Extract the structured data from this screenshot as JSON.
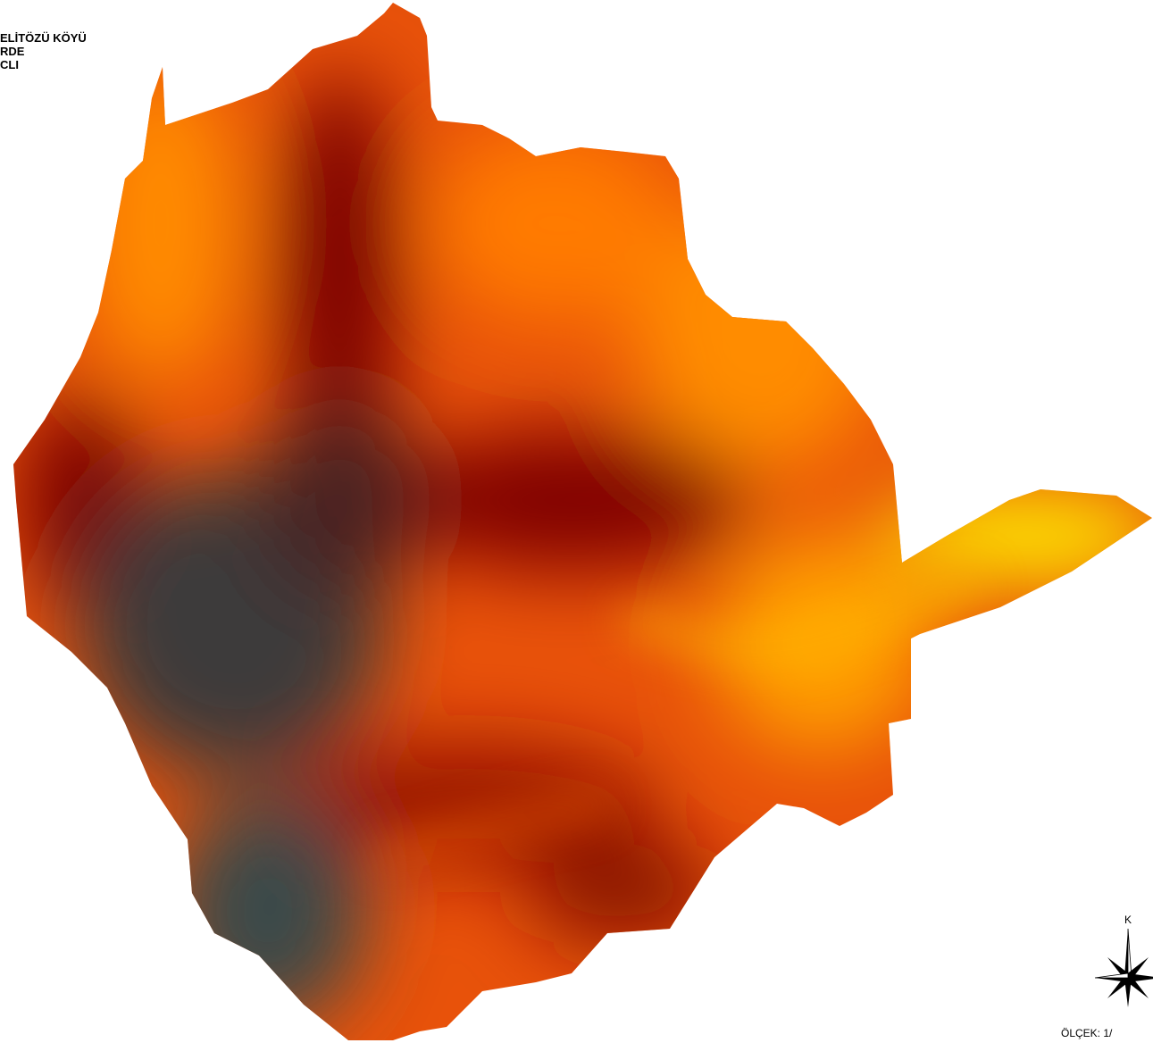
{
  "title_lines": [
    "ELİTÖZÜ KÖYÜ",
    "RDE",
    "CLI"
  ],
  "north_arrow": {
    "label": "K"
  },
  "scale": {
    "label": "ÖLÇEK: 1/"
  }
}
